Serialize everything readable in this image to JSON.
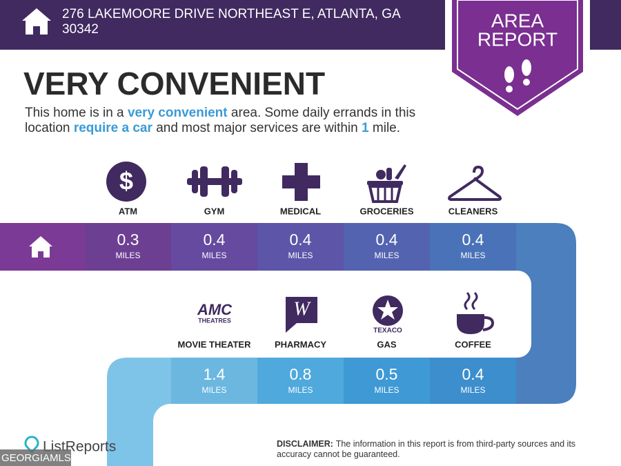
{
  "header": {
    "address_line1": "276 LAKEMOORE DRIVE NORTHEAST E, ATLANTA, GA",
    "address_line2": "30342"
  },
  "badge": {
    "line1": "AREA",
    "line2": "REPORT"
  },
  "title": "VERY CONVENIENT",
  "description": [
    {
      "text": "This home is in a",
      "highlight": false
    },
    {
      "text": "very convenient",
      "highlight": true
    },
    {
      "text": "area. Some daily errands in this location",
      "highlight": false
    },
    {
      "text": "require a car",
      "highlight": true
    },
    {
      "text": "and most major services are within",
      "highlight": false
    },
    {
      "text": "1",
      "highlight": true
    },
    {
      "text": "mile.",
      "highlight": false
    }
  ],
  "amenities_row1": [
    {
      "label": "ATM",
      "distance": 0.3,
      "unit": "MILES"
    },
    {
      "label": "GYM",
      "distance": 0.4,
      "unit": "MILES"
    },
    {
      "label": "MEDICAL",
      "distance": 0.4,
      "unit": "MILES"
    },
    {
      "label": "GROCERIES",
      "distance": 0.4,
      "unit": "MILES"
    },
    {
      "label": "CLEANERS",
      "distance": 0.4,
      "unit": "MILES"
    }
  ],
  "amenities_row2": [
    {
      "label": "MOVIE THEATER",
      "distance": 1.4,
      "unit": "MILES"
    },
    {
      "label": "PHARMACY",
      "distance": 0.8,
      "unit": "MILES"
    },
    {
      "label": "GAS",
      "distance": 0.5,
      "unit": "MILES"
    },
    {
      "label": "COFFEE",
      "distance": 0.4,
      "unit": "MILES"
    }
  ],
  "logos": {
    "atm_symbol": "$",
    "amc": "AMC",
    "amc_sub": "THEATRES",
    "walgreens": "W",
    "texaco": "TEXACO"
  },
  "footer": {
    "brand": "ListReports",
    "disclaimer_label": "DISCLAIMER:",
    "disclaimer_text": "The information in this report is from third-party sources and its accuracy cannot be guaranteed.",
    "watermark": "GEORGIAMLS"
  }
}
